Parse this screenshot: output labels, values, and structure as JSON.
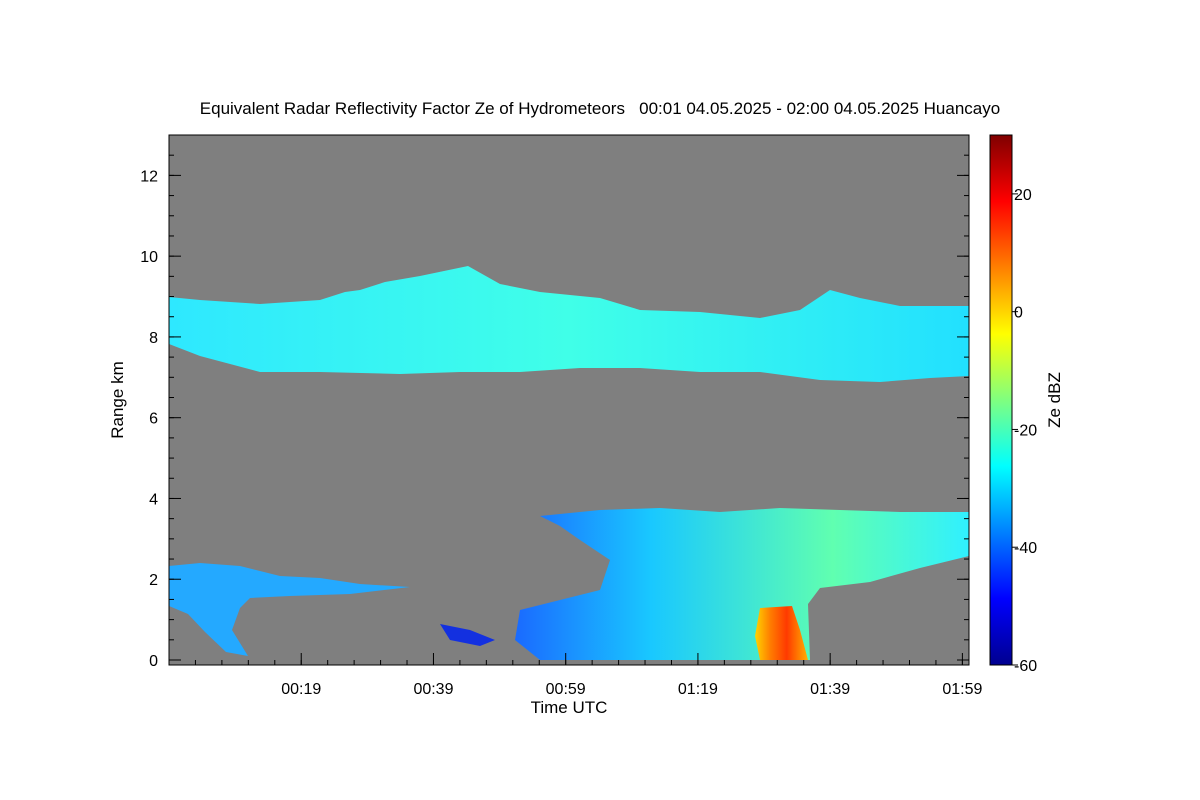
{
  "chart_data": {
    "type": "heatmap",
    "title": "Equivalent Radar Reflectivity Factor Ze of Hydrometeors   00:01 04.05.2025 - 02:00 04.05.2025 Huancayo",
    "xlabel": "Time UTC",
    "ylabel": "Range km",
    "x_range": [
      "23:59",
      "02:00"
    ],
    "x_ticks": [
      "00:19",
      "00:39",
      "00:59",
      "01:19",
      "01:39",
      "01:59"
    ],
    "ylim": [
      0,
      13
    ],
    "y_ticks": [
      0,
      2,
      4,
      6,
      8,
      10,
      12
    ],
    "background_color": "#7f7f7f",
    "colorbar": {
      "label": "Ze dBZ",
      "range": [
        -60,
        30
      ],
      "ticks": [
        -60,
        -40,
        -20,
        0,
        20
      ],
      "colormap": "jet"
    },
    "layers": [
      {
        "name": "upper-cirrus",
        "x_start": "00:01",
        "x_end": "01:59",
        "base_km": 7.2,
        "top_km": 8.8,
        "ze_dbz": -28
      },
      {
        "name": "upper-cirrus-tops",
        "x_start": "00:27",
        "x_end": "00:50",
        "base_km": 8.6,
        "top_km": 9.6,
        "ze_dbz": -30
      },
      {
        "name": "lower-cloud-left",
        "x_start": "00:01",
        "x_end": "00:38",
        "base_km": 1.5,
        "top_km": 2.5,
        "ze_dbz": -36
      },
      {
        "name": "lower-cloud-left-base",
        "x_start": "00:01",
        "x_end": "00:13",
        "base_km": 0.3,
        "top_km": 1.6,
        "ze_dbz": -34
      },
      {
        "name": "lower-cloud-main",
        "x_start": "00:55",
        "x_end": "01:59",
        "base_km": 0.0,
        "top_km": 3.8,
        "ze_dbz": -20
      },
      {
        "name": "precipitation-core",
        "x_start": "01:27",
        "x_end": "01:34",
        "base_km": 0.0,
        "top_km": 1.5,
        "ze_dbz": 8
      }
    ]
  }
}
